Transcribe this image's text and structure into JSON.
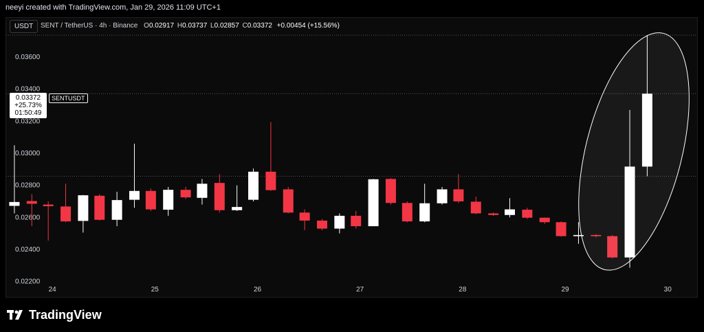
{
  "header": {
    "attribution": "neeyi created with TradingView.com, Jan 29, 2026 11:09 UTC+1"
  },
  "toolbar": {
    "currency": "USDT"
  },
  "legend": {
    "symbol_line": "SENT / TetherUS · 4h · Binance",
    "o_label": "O",
    "o_value": "0.02917",
    "h_label": "H",
    "h_value": "0.03737",
    "l_label": "L",
    "l_value": "0.02857",
    "c_label": "C",
    "c_value": "0.03372",
    "change": "+0.00454 (+15.56%)"
  },
  "price_marker": {
    "price": "0.03372",
    "percent": "+25.73%",
    "countdown": "01:50:49",
    "symbol": "SENTUSDT"
  },
  "brand": {
    "name": "TradingView",
    "icon": "tradingview-logo-icon"
  },
  "colors": {
    "up": "#ffffff",
    "down": "#f23645",
    "background": "#0b0b0b",
    "grid_dotted": "#555555",
    "annotation": "#ffffff"
  },
  "chart_data": {
    "type": "candlestick",
    "x_tick_labels": [
      "24",
      "25",
      "26",
      "27",
      "28",
      "29",
      "30"
    ],
    "x_ticks": [
      24,
      25,
      26,
      27,
      28,
      29,
      30
    ],
    "y_tick_labels": [
      "0.03600",
      "0.03400",
      "0.03200",
      "0.03000",
      "0.02800",
      "0.02600",
      "0.02400",
      "0.02200"
    ],
    "y_ticks": [
      0.036,
      0.034,
      0.032,
      0.03,
      0.028,
      0.026,
      0.024,
      0.022
    ],
    "y_range": [
      0.02095,
      0.03845
    ],
    "x_range": [
      23.55,
      30.3
    ],
    "horizontal_levels": [
      0.03737,
      0.03372,
      0.02857
    ],
    "annotation": "ellipse around last three candles",
    "candles": [
      {
        "t": 23.63,
        "o": 0.02672,
        "h": 0.0305,
        "l": 0.02625,
        "c": 0.02696
      },
      {
        "t": 23.8,
        "o": 0.02702,
        "h": 0.02745,
        "l": 0.02545,
        "c": 0.02685
      },
      {
        "t": 23.96,
        "o": 0.0268,
        "h": 0.027,
        "l": 0.02455,
        "c": 0.0267
      },
      {
        "t": 24.13,
        "o": 0.02668,
        "h": 0.0281,
        "l": 0.0257,
        "c": 0.02575
      },
      {
        "t": 24.3,
        "o": 0.02578,
        "h": 0.0274,
        "l": 0.02505,
        "c": 0.02738
      },
      {
        "t": 24.46,
        "o": 0.02735,
        "h": 0.02745,
        "l": 0.0258,
        "c": 0.02585
      },
      {
        "t": 24.63,
        "o": 0.02585,
        "h": 0.0276,
        "l": 0.02545,
        "c": 0.02708
      },
      {
        "t": 24.8,
        "o": 0.0271,
        "h": 0.0306,
        "l": 0.0266,
        "c": 0.02765
      },
      {
        "t": 24.96,
        "o": 0.02765,
        "h": 0.0278,
        "l": 0.0264,
        "c": 0.0265
      },
      {
        "t": 25.13,
        "o": 0.02648,
        "h": 0.0279,
        "l": 0.0261,
        "c": 0.02772
      },
      {
        "t": 25.3,
        "o": 0.02772,
        "h": 0.0279,
        "l": 0.02715,
        "c": 0.02725
      },
      {
        "t": 25.46,
        "o": 0.02722,
        "h": 0.0284,
        "l": 0.0268,
        "c": 0.0281
      },
      {
        "t": 25.63,
        "o": 0.02815,
        "h": 0.0287,
        "l": 0.0263,
        "c": 0.02645
      },
      {
        "t": 25.8,
        "o": 0.02645,
        "h": 0.028,
        "l": 0.0264,
        "c": 0.02665
      },
      {
        "t": 25.96,
        "o": 0.0271,
        "h": 0.02905,
        "l": 0.027,
        "c": 0.02885
      },
      {
        "t": 26.13,
        "o": 0.02885,
        "h": 0.03195,
        "l": 0.02765,
        "c": 0.0277
      },
      {
        "t": 26.3,
        "o": 0.02775,
        "h": 0.0279,
        "l": 0.02625,
        "c": 0.0263
      },
      {
        "t": 26.46,
        "o": 0.0263,
        "h": 0.0265,
        "l": 0.0252,
        "c": 0.0258
      },
      {
        "t": 26.63,
        "o": 0.0258,
        "h": 0.0259,
        "l": 0.0252,
        "c": 0.0253
      },
      {
        "t": 26.8,
        "o": 0.0253,
        "h": 0.02625,
        "l": 0.025,
        "c": 0.0261
      },
      {
        "t": 26.96,
        "o": 0.0261,
        "h": 0.0264,
        "l": 0.0253,
        "c": 0.02545
      },
      {
        "t": 27.13,
        "o": 0.02545,
        "h": 0.0284,
        "l": 0.02545,
        "c": 0.02838
      },
      {
        "t": 27.3,
        "o": 0.0284,
        "h": 0.02845,
        "l": 0.0268,
        "c": 0.0269
      },
      {
        "t": 27.46,
        "o": 0.0269,
        "h": 0.027,
        "l": 0.0257,
        "c": 0.02575
      },
      {
        "t": 27.63,
        "o": 0.02575,
        "h": 0.0281,
        "l": 0.0257,
        "c": 0.02688
      },
      {
        "t": 27.8,
        "o": 0.02688,
        "h": 0.0279,
        "l": 0.0268,
        "c": 0.02775
      },
      {
        "t": 27.96,
        "o": 0.02775,
        "h": 0.0287,
        "l": 0.0269,
        "c": 0.027
      },
      {
        "t": 28.13,
        "o": 0.02698,
        "h": 0.0273,
        "l": 0.0262,
        "c": 0.02625
      },
      {
        "t": 28.3,
        "o": 0.02625,
        "h": 0.0263,
        "l": 0.0261,
        "c": 0.02615
      },
      {
        "t": 28.46,
        "o": 0.02615,
        "h": 0.0272,
        "l": 0.026,
        "c": 0.0265
      },
      {
        "t": 28.63,
        "o": 0.02648,
        "h": 0.0266,
        "l": 0.0259,
        "c": 0.02598
      },
      {
        "t": 28.8,
        "o": 0.02598,
        "h": 0.026,
        "l": 0.0256,
        "c": 0.0257
      },
      {
        "t": 28.96,
        "o": 0.0257,
        "h": 0.02575,
        "l": 0.0248,
        "c": 0.02483
      },
      {
        "t": 29.13,
        "o": 0.02483,
        "h": 0.0257,
        "l": 0.02435,
        "c": 0.0249
      },
      {
        "t": 29.3,
        "o": 0.0249,
        "h": 0.02495,
        "l": 0.02475,
        "c": 0.02483
      },
      {
        "t": 29.46,
        "o": 0.02483,
        "h": 0.0249,
        "l": 0.02345,
        "c": 0.0235
      },
      {
        "t": 29.63,
        "o": 0.0235,
        "h": 0.0327,
        "l": 0.02286,
        "c": 0.02917
      },
      {
        "t": 29.8,
        "o": 0.02917,
        "h": 0.03737,
        "l": 0.02857,
        "c": 0.03372
      }
    ]
  }
}
